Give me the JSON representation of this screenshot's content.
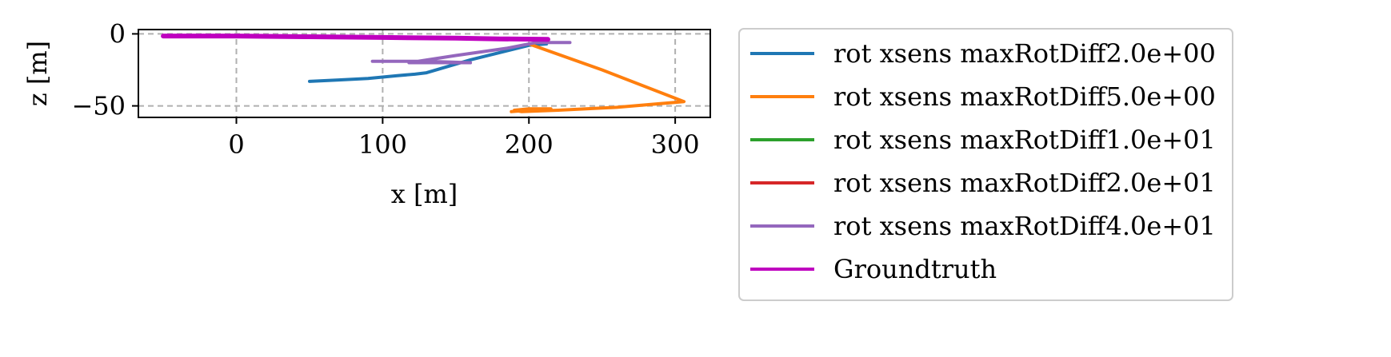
{
  "chart_data": {
    "type": "line",
    "title": "",
    "xlabel": "x [m]",
    "ylabel": "z [m]",
    "xlim": [
      -67,
      324
    ],
    "ylim": [
      -58,
      3
    ],
    "xticks": [
      0,
      100,
      200,
      300
    ],
    "xtick_labels": [
      "0",
      "100",
      "200",
      "300"
    ],
    "yticks": [
      0,
      -50
    ],
    "ytick_labels": [
      "0",
      "−50"
    ],
    "grid": true,
    "legend_position": "right-outside",
    "series": [
      {
        "name": "rot xsens maxRotDiff2.0e+00",
        "color": "#1f77b4",
        "points": [
          [
            50,
            -33
          ],
          [
            70,
            -32
          ],
          [
            90,
            -31
          ],
          [
            110,
            -29
          ],
          [
            122,
            -28
          ],
          [
            130,
            -27
          ],
          [
            160,
            -18
          ],
          [
            200,
            -8
          ],
          [
            212,
            -7
          ]
        ]
      },
      {
        "name": "rot xsens maxRotDiff5.0e+00",
        "color": "#ff7f0e",
        "points": [
          [
            200,
            -7
          ],
          [
            250,
            -25
          ],
          [
            306,
            -47
          ],
          [
            260,
            -51
          ],
          [
            220,
            -53
          ],
          [
            195,
            -54
          ],
          [
            190,
            -53
          ],
          [
            200,
            -52
          ],
          [
            215,
            -52
          ],
          [
            200,
            -53
          ],
          [
            188,
            -54
          ]
        ]
      },
      {
        "name": "rot xsens maxRotDiff1.0e+01",
        "color": "#2ca02c",
        "points": []
      },
      {
        "name": "rot xsens maxRotDiff2.0e+01",
        "color": "#d62728",
        "points": []
      },
      {
        "name": "rot xsens maxRotDiff4.0e+01",
        "color": "#9467bd",
        "points": [
          [
            93,
            -19
          ],
          [
            130,
            -19
          ],
          [
            160,
            -20
          ],
          [
            118,
            -20
          ],
          [
            150,
            -15
          ],
          [
            185,
            -10
          ],
          [
            205,
            -6
          ],
          [
            228,
            -6
          ]
        ]
      },
      {
        "name": "Groundtruth",
        "color": "#bf00bf",
        "points": [
          [
            -50,
            -1.5
          ],
          [
            0,
            -1.5
          ],
          [
            50,
            -2.0
          ],
          [
            100,
            -2.5
          ],
          [
            150,
            -3.0
          ],
          [
            180,
            -3.5
          ],
          [
            213,
            -3.8
          ]
        ]
      }
    ]
  }
}
